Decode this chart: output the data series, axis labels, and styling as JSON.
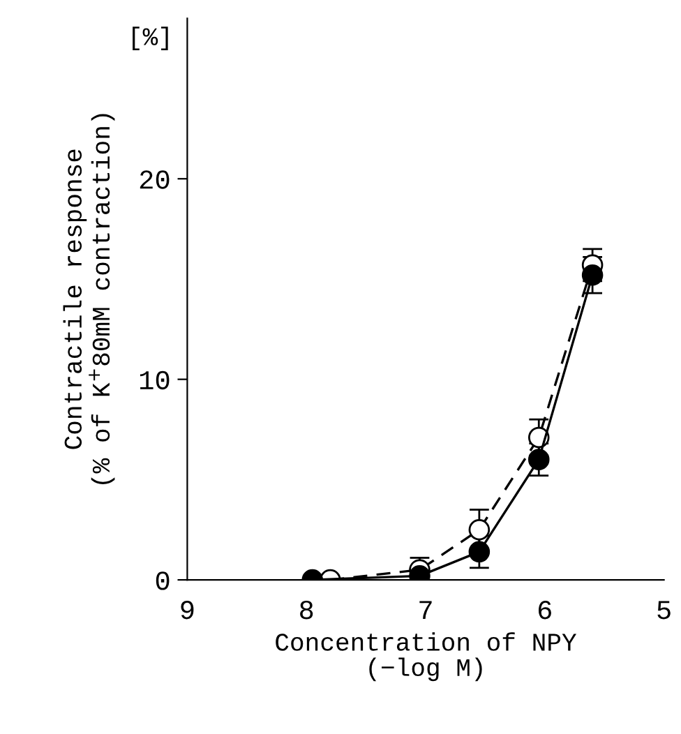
{
  "chart_data": {
    "type": "line",
    "xlabel": "Concentration of NPY\n(−log M)",
    "ylabel": "Contractile response\n(% of K$^{+}$80mM contraction)",
    "annotations": [
      "[%]"
    ],
    "xlim": [
      9,
      5
    ],
    "xticks": [
      9,
      8,
      7,
      6,
      5
    ],
    "ylim": [
      0,
      28
    ],
    "yticks": [
      0,
      10,
      20
    ],
    "grid": false,
    "marker": "circle",
    "series": [
      {
        "color": "#ffffff",
        "line_style": "dashed",
        "x": [
          7.8,
          7.05,
          6.55,
          6.05,
          5.6
        ],
        "values": [
          0,
          0.5,
          2.5,
          7.1,
          15.7
        ],
        "errors": [
          null,
          0.6,
          1.0,
          0.9,
          0.8
        ]
      },
      {
        "color": "#000000",
        "line_style": "solid",
        "x": [
          7.95,
          7.05,
          6.55,
          6.05,
          5.6
        ],
        "values": [
          0,
          0.2,
          1.4,
          6.0,
          15.2
        ],
        "errors": [
          null,
          null,
          0.8,
          0.8,
          0.9
        ]
      }
    ]
  }
}
